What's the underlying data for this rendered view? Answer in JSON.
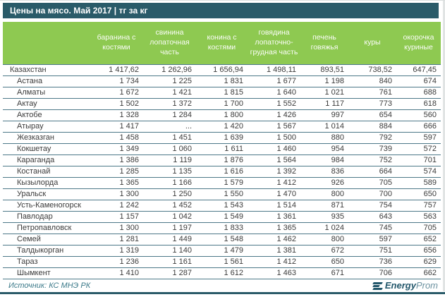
{
  "title": "Цены на мясо. Май 2017 | тг за кг",
  "chart_data": {
    "type": "table",
    "title": "Цены на мясо. Май 2017 | тг за кг",
    "unit": "тг за кг",
    "columns": [
      "баранина с костями",
      "свинина лопаточная часть",
      "конина с костями",
      "говядина лопаточно-грудная часть",
      "печень говяжья",
      "куры",
      "окорочка куриные"
    ],
    "rows": [
      {
        "name": "Казахстан",
        "values": [
          "1 417,62",
          "1 262,96",
          "1 656,94",
          "1 498,11",
          "893,51",
          "738,52",
          "647,45"
        ]
      },
      {
        "name": "Астана",
        "values": [
          "1 734",
          "1 225",
          "1 831",
          "1 677",
          "1 198",
          "840",
          "674"
        ]
      },
      {
        "name": "Алматы",
        "values": [
          "1 672",
          "1 421",
          "1 815",
          "1 640",
          "1 021",
          "761",
          "688"
        ]
      },
      {
        "name": "Актау",
        "values": [
          "1 502",
          "1 372",
          "1 700",
          "1 552",
          "1 117",
          "773",
          "618"
        ]
      },
      {
        "name": "Актобе",
        "values": [
          "1 328",
          "1 284",
          "1 800",
          "1 426",
          "997",
          "654",
          "560"
        ]
      },
      {
        "name": "Атырау",
        "values": [
          "1 417",
          "...",
          "1 420",
          "1 567",
          "1 014",
          "884",
          "666"
        ]
      },
      {
        "name": "Жезказган",
        "values": [
          "1 458",
          "1 451",
          "1 639",
          "1 500",
          "880",
          "792",
          "597"
        ]
      },
      {
        "name": "Кокшетау",
        "values": [
          "1 349",
          "1 060",
          "1 611",
          "1 460",
          "954",
          "739",
          "572"
        ]
      },
      {
        "name": "Караганда",
        "values": [
          "1 386",
          "1 119",
          "1 876",
          "1 564",
          "984",
          "752",
          "701"
        ]
      },
      {
        "name": "Костанай",
        "values": [
          "1 285",
          "1 135",
          "1 616",
          "1 392",
          "836",
          "664",
          "574"
        ]
      },
      {
        "name": "Кызылорда",
        "values": [
          "1 365",
          "1 166",
          "1 579",
          "1 412",
          "926",
          "705",
          "589"
        ]
      },
      {
        "name": "Уральск",
        "values": [
          "1 300",
          "1 250",
          "1 550",
          "1 470",
          "800",
          "700",
          "650"
        ]
      },
      {
        "name": "Усть-Каменогорск",
        "values": [
          "1 242",
          "1 452",
          "1 543",
          "1 514",
          "871",
          "754",
          "757"
        ]
      },
      {
        "name": "Павлодар",
        "values": [
          "1 157",
          "1 042",
          "1 549",
          "1 361",
          "935",
          "643",
          "563"
        ]
      },
      {
        "name": "Петропавловск",
        "values": [
          "1 300",
          "1 197",
          "1 833",
          "1 365",
          "1 024",
          "745",
          "705"
        ]
      },
      {
        "name": "Семей",
        "values": [
          "1 281",
          "1 449",
          "1 548",
          "1 462",
          "800",
          "597",
          "652"
        ]
      },
      {
        "name": "Талдыкорган",
        "values": [
          "1 319",
          "1 140",
          "1 479",
          "1 381",
          "672",
          "751",
          "656"
        ]
      },
      {
        "name": "Тараз",
        "values": [
          "1 236",
          "1 161",
          "1 561",
          "1 412",
          "650",
          "736",
          "629"
        ]
      },
      {
        "name": "Шымкент",
        "values": [
          "1 410",
          "1 287",
          "1 612",
          "1 463",
          "671",
          "706",
          "662"
        ]
      }
    ]
  },
  "footer": {
    "source": "Источник: КС МНЭ РК",
    "logo_bold": "Energy",
    "logo_light": "Prom"
  },
  "colors": {
    "title_bg": "#2a5b69",
    "header_bg": "#8ec951",
    "row_border": "#4c7888",
    "text": "#3b3b3b",
    "footer_text": "#3c7a8a",
    "logo_dark": "#23576b",
    "logo_light": "#6d93a1"
  }
}
